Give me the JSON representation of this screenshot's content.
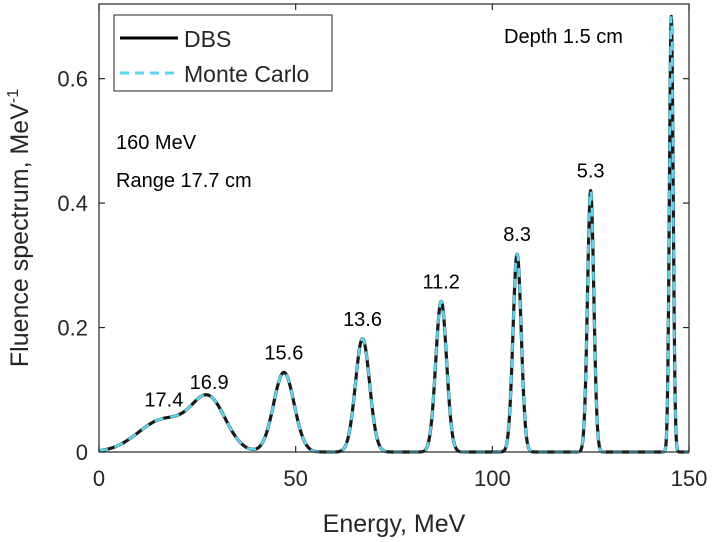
{
  "chart_data": {
    "type": "line",
    "title": "",
    "xlabel": "Energy, MeV",
    "ylabel": "Fluence spectrum, MeV",
    "ylabel_superscript": "-1",
    "xlim": [
      0,
      150
    ],
    "ylim": [
      0,
      0.72
    ],
    "xticks": [
      0,
      50,
      100,
      150
    ],
    "yticks": [
      0,
      0.2,
      0.4,
      0.6
    ],
    "ytick_labels": [
      "0",
      "0.2",
      "0.4",
      "0.6"
    ],
    "grid": false,
    "legend": {
      "placement": "top-left",
      "entries": [
        {
          "name": "DBS",
          "color": "#000000",
          "style": "solid"
        },
        {
          "name": "Monte Carlo",
          "color": "#5ad7f0",
          "style": "dashed"
        }
      ]
    },
    "annotations": {
      "beam_energy": "160 MeV",
      "range": "Range 17.7 cm",
      "first_depth": "Depth 1.5 cm"
    },
    "peaks": [
      {
        "depth_label": "17.4",
        "center": 16.5,
        "height": 0.052,
        "sigma": 6.5
      },
      {
        "depth_label": "16.9",
        "center": 28.0,
        "height": 0.08,
        "sigma": 4.3
      },
      {
        "depth_label": "15.6",
        "center": 47.0,
        "height": 0.128,
        "sigma": 2.6
      },
      {
        "depth_label": "13.6",
        "center": 67.0,
        "height": 0.182,
        "sigma": 1.8
      },
      {
        "depth_label": "11.2",
        "center": 87.0,
        "height": 0.242,
        "sigma": 1.38
      },
      {
        "depth_label": "8.3",
        "center": 106.3,
        "height": 0.318,
        "sigma": 1.05
      },
      {
        "depth_label": "5.3",
        "center": 125.0,
        "height": 0.42,
        "sigma": 0.8
      },
      {
        "depth_label": "",
        "center": 145.5,
        "height": 0.7,
        "sigma": 0.48
      }
    ],
    "series": [
      {
        "name": "DBS",
        "color": "#1a1a1a"
      },
      {
        "name": "Monte Carlo",
        "color": "#5ad7f0"
      }
    ]
  }
}
